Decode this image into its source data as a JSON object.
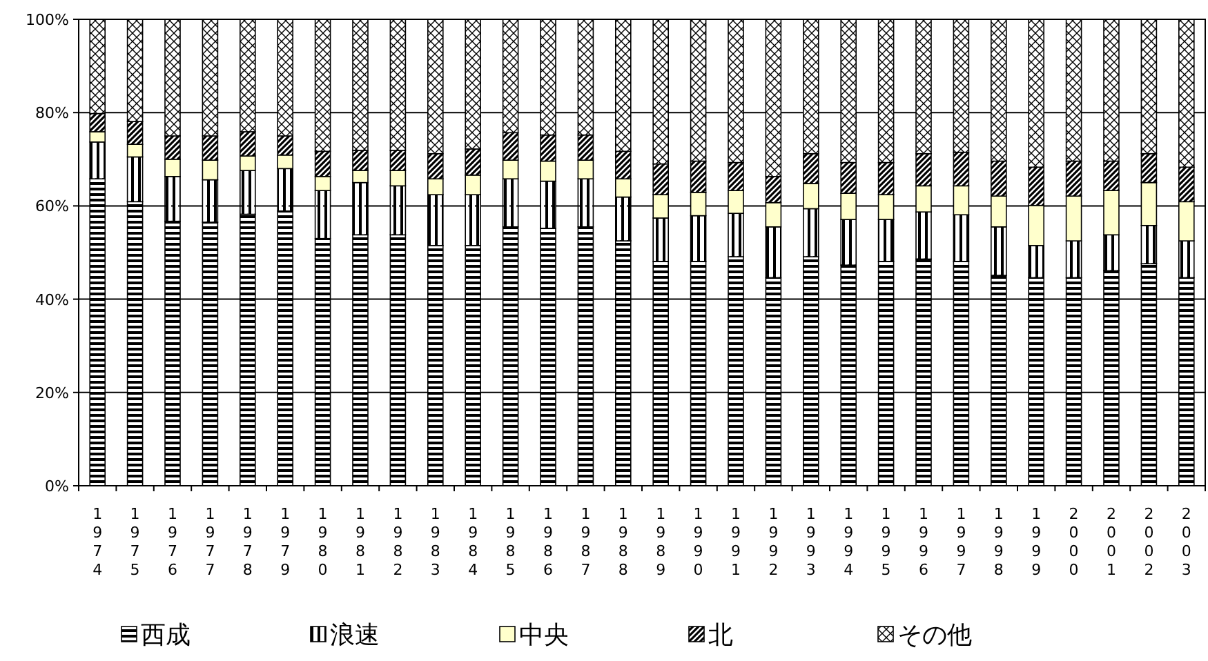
{
  "chart_data": {
    "type": "bar",
    "stacked": true,
    "categories": [
      "1974",
      "1975",
      "1976",
      "1977",
      "1978",
      "1979",
      "1980",
      "1981",
      "1982",
      "1983",
      "1984",
      "1985",
      "1986",
      "1987",
      "1988",
      "1989",
      "1990",
      "1991",
      "1992",
      "1993",
      "1994",
      "1995",
      "1996",
      "1997",
      "1998",
      "1999",
      "2000",
      "2001",
      "2002",
      "2003"
    ],
    "series": [
      {
        "name": "西成",
        "color": "#000000",
        "values": [
          65.8,
          60.9,
          56.7,
          56.5,
          58.2,
          58.9,
          53.0,
          53.8,
          53.8,
          51.5,
          51.5,
          55.5,
          55.2,
          55.5,
          52.5,
          48.1,
          48.1,
          49.1,
          44.6,
          49.1,
          47.3,
          48.1,
          48.6,
          48.1,
          45.1,
          44.6,
          44.6,
          46.1,
          47.6,
          44.6
        ]
      },
      {
        "name": "浪速",
        "color": "#000000",
        "values": [
          7.9,
          9.6,
          9.6,
          9.1,
          9.4,
          9.1,
          10.3,
          11.2,
          10.5,
          10.9,
          10.9,
          10.3,
          10.1,
          10.3,
          9.4,
          9.3,
          9.8,
          9.3,
          10.9,
          10.3,
          9.8,
          9.0,
          10.1,
          10.0,
          10.4,
          6.9,
          7.9,
          7.7,
          8.2,
          7.9
        ]
      },
      {
        "name": "中央",
        "color": "#ffffcc",
        "values": [
          2.2,
          2.7,
          3.7,
          4.2,
          3.1,
          2.9,
          3.0,
          2.6,
          3.3,
          3.4,
          4.2,
          4.0,
          4.3,
          4.0,
          3.9,
          5.0,
          5.0,
          4.9,
          5.2,
          5.4,
          5.6,
          5.3,
          5.6,
          6.2,
          6.6,
          8.6,
          9.6,
          9.5,
          9.2,
          8.4
        ]
      },
      {
        "name": "北",
        "color": "#000000",
        "values": [
          3.9,
          4.9,
          5.0,
          5.2,
          5.2,
          4.1,
          5.4,
          4.3,
          4.3,
          5.4,
          5.6,
          5.9,
          5.6,
          5.4,
          5.9,
          6.6,
          6.7,
          6.0,
          5.6,
          6.4,
          6.6,
          6.9,
          6.9,
          7.2,
          7.5,
          8.2,
          7.5,
          6.3,
          6.2,
          7.4
        ]
      },
      {
        "name": "その他",
        "color": "#000000",
        "values": [
          20.2,
          21.9,
          25.0,
          25.0,
          24.1,
          25.0,
          28.3,
          28.1,
          28.1,
          28.8,
          27.8,
          24.3,
          24.8,
          24.8,
          28.3,
          31.0,
          30.4,
          30.7,
          33.7,
          28.8,
          30.7,
          30.7,
          28.8,
          28.5,
          30.4,
          31.7,
          30.4,
          30.4,
          28.8,
          31.7
        ]
      }
    ],
    "ylim": [
      0,
      100
    ],
    "yticks": [
      {
        "value": 0,
        "label": "0%"
      },
      {
        "value": 20,
        "label": "20%"
      },
      {
        "value": 40,
        "label": "40%"
      },
      {
        "value": 60,
        "label": "60%"
      },
      {
        "value": 80,
        "label": "80%"
      },
      {
        "value": 100,
        "label": "100%"
      }
    ],
    "grid": "y",
    "legend": "bottom"
  }
}
